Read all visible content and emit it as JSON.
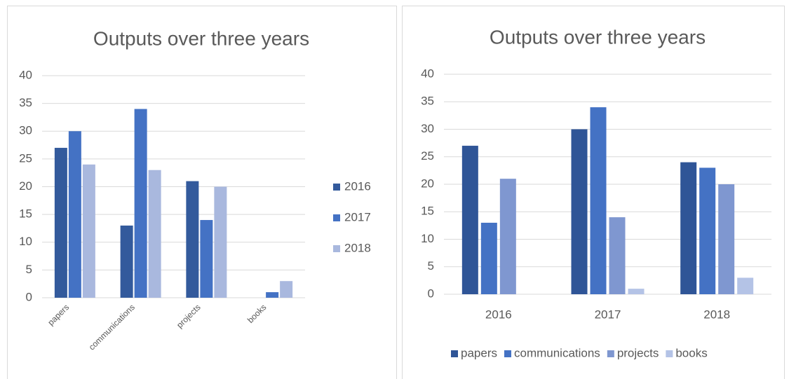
{
  "chart_data": [
    {
      "type": "bar",
      "title": "Outputs over three years",
      "categories": [
        "papers",
        "communications",
        "projects",
        "books"
      ],
      "series": [
        {
          "name": "2016",
          "color": "#335a9c",
          "values": [
            27,
            13,
            21,
            0
          ]
        },
        {
          "name": "2017",
          "color": "#4472c4",
          "values": [
            30,
            34,
            14,
            1
          ]
        },
        {
          "name": "2018",
          "color": "#a9b8de",
          "values": [
            24,
            23,
            20,
            3
          ]
        }
      ],
      "ylim": [
        0,
        40
      ],
      "yticks": [
        0,
        5,
        10,
        15,
        20,
        25,
        30,
        35,
        40
      ],
      "grid": true,
      "legend": "right"
    },
    {
      "type": "bar",
      "title": "Outputs over three years",
      "categories": [
        "2016",
        "2017",
        "2018"
      ],
      "series": [
        {
          "name": "papers",
          "color": "#2f5597",
          "values": [
            27,
            30,
            24
          ]
        },
        {
          "name": "communications",
          "color": "#4472c4",
          "values": [
            13,
            34,
            23
          ]
        },
        {
          "name": "projects",
          "color": "#7f97d0",
          "values": [
            21,
            14,
            20
          ]
        },
        {
          "name": "books",
          "color": "#b4c3e6",
          "values": [
            0,
            1,
            3
          ]
        }
      ],
      "ylim": [
        0,
        40
      ],
      "yticks": [
        0,
        5,
        10,
        15,
        20,
        25,
        30,
        35,
        40
      ],
      "grid": true,
      "legend": "bottom"
    }
  ]
}
